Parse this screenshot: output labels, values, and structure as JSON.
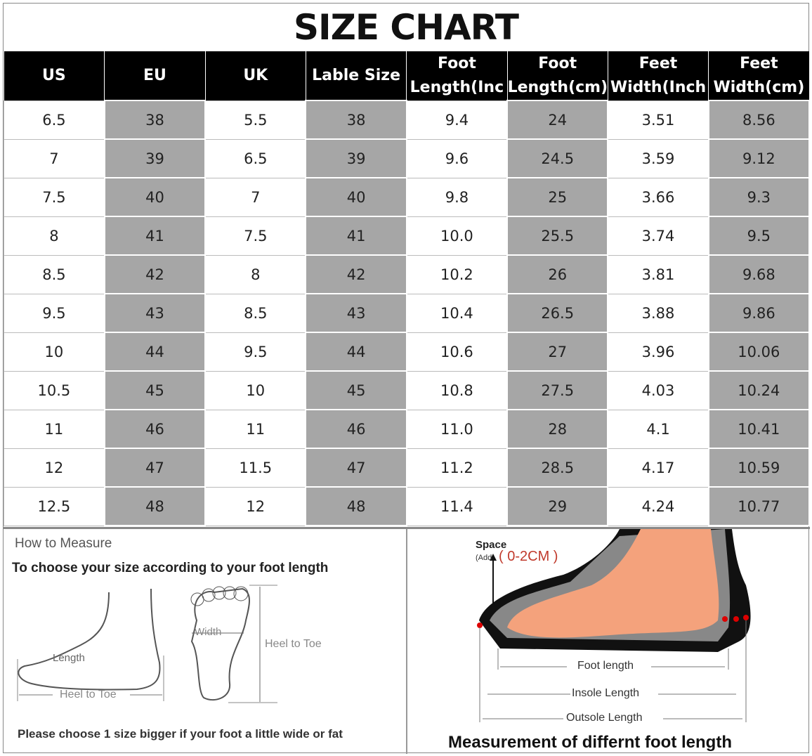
{
  "title": "SIZE CHART",
  "table": {
    "headers": [
      "US",
      "EU",
      "UK",
      "Lable Size",
      "Foot Length(Inc",
      "Foot Length(cm)",
      "Feet Width(Inch",
      "Feet Width(cm)"
    ],
    "rows": [
      [
        "6.5",
        "38",
        "5.5",
        "38",
        "9.4",
        "24",
        "3.51",
        "8.56"
      ],
      [
        "7",
        "39",
        "6.5",
        "39",
        "9.6",
        "24.5",
        "3.59",
        "9.12"
      ],
      [
        "7.5",
        "40",
        "7",
        "40",
        "9.8",
        "25",
        "3.66",
        "9.3"
      ],
      [
        "8",
        "41",
        "7.5",
        "41",
        "10.0",
        "25.5",
        "3.74",
        "9.5"
      ],
      [
        "8.5",
        "42",
        "8",
        "42",
        "10.2",
        "26",
        "3.81",
        "9.68"
      ],
      [
        "9.5",
        "43",
        "8.5",
        "43",
        "10.4",
        "26.5",
        "3.88",
        "9.86"
      ],
      [
        "10",
        "44",
        "9.5",
        "44",
        "10.6",
        "27",
        "3.96",
        "10.06"
      ],
      [
        "10.5",
        "45",
        "10",
        "45",
        "10.8",
        "27.5",
        "4.03",
        "10.24"
      ],
      [
        "11",
        "46",
        "11",
        "46",
        "11.0",
        "28",
        "4.1",
        "10.41"
      ],
      [
        "12",
        "47",
        "11.5",
        "47",
        "11.2",
        "28.5",
        "4.17",
        "10.59"
      ],
      [
        "12.5",
        "48",
        "12",
        "48",
        "11.4",
        "29",
        "4.24",
        "10.77"
      ]
    ]
  },
  "measure": {
    "heading": "How to Measure",
    "subheading": "To choose your size according to your foot length",
    "length": "Length",
    "heel_to_toe": "Heel to Toe",
    "width": "Width",
    "heel_to_toe_2": "Heel to Toe",
    "note": "Please choose 1 size bigger if your foot a little wide or fat"
  },
  "shoe": {
    "space": "Space",
    "add": "(Add",
    "range": "( 0-2CM )",
    "foot_length": "Foot length",
    "insole_length": "Insole Length",
    "outsole_length": "Outsole Length",
    "caption": "Measurement of differnt foot length"
  },
  "colors": {
    "header_bg": "#000000",
    "alt_col": "#a6a6a6",
    "space_red": "#c0392b",
    "skin": "#f4a27c"
  }
}
